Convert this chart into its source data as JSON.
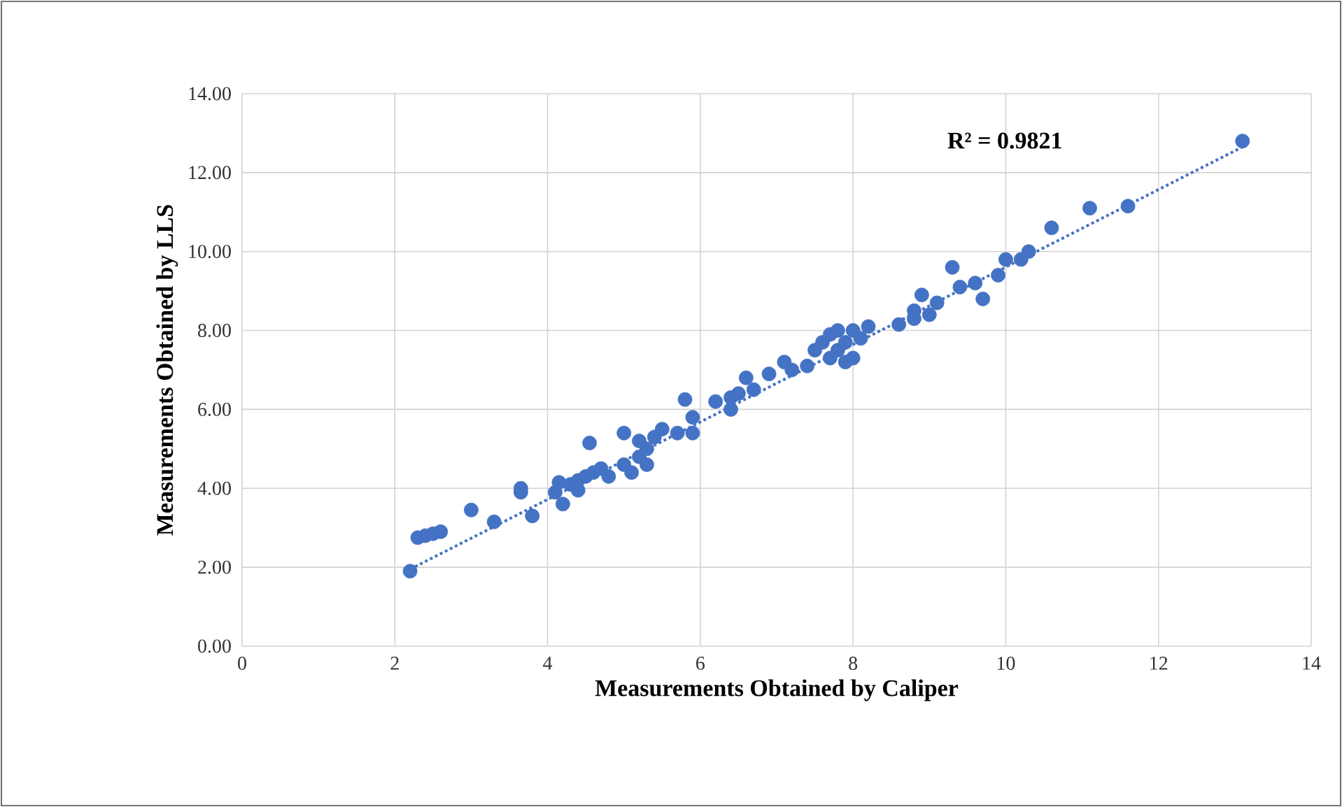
{
  "chart_data": {
    "type": "scatter",
    "xlabel": "Measurements Obtained by Caliper",
    "ylabel": "Measurements Obtained by  LLS",
    "annotations": [
      "R² = 0.9821"
    ],
    "xlim": [
      0,
      14
    ],
    "ylim": [
      0,
      14
    ],
    "xticks": [
      0,
      2,
      4,
      6,
      8,
      10,
      12,
      14
    ],
    "yticks": [
      {
        "value": 0,
        "label": "0.00"
      },
      {
        "value": 2,
        "label": "2.00"
      },
      {
        "value": 4,
        "label": "4.00"
      },
      {
        "value": 6,
        "label": "6.00"
      },
      {
        "value": 8,
        "label": "8.00"
      },
      {
        "value": 10,
        "label": "10.00"
      },
      {
        "value": 12,
        "label": "12.00"
      },
      {
        "value": 14,
        "label": "14.00"
      }
    ],
    "grid": true,
    "marker": "circle",
    "series": [
      {
        "color": "#4472c4",
        "x": [
          2.2,
          2.3,
          2.4,
          2.5,
          2.6,
          3.0,
          3.3,
          3.65,
          3.65,
          3.8,
          4.1,
          4.15,
          4.2,
          4.3,
          4.4,
          4.4,
          4.5,
          4.55,
          4.6,
          4.7,
          4.8,
          5.0,
          5.0,
          5.1,
          5.2,
          5.2,
          5.3,
          5.3,
          5.4,
          5.5,
          5.7,
          5.8,
          5.9,
          5.9,
          6.2,
          6.4,
          6.4,
          6.5,
          6.6,
          6.7,
          6.9,
          7.1,
          7.2,
          7.4,
          7.5,
          7.6,
          7.7,
          7.7,
          7.8,
          7.8,
          7.9,
          7.9,
          8.0,
          8.0,
          8.1,
          8.2,
          8.6,
          8.8,
          8.8,
          8.9,
          9.0,
          9.1,
          9.3,
          9.4,
          9.6,
          9.7,
          9.9,
          10.0,
          10.2,
          10.3,
          10.6,
          11.1,
          11.6,
          13.1
        ],
        "values": [
          1.9,
          2.75,
          2.8,
          2.85,
          2.9,
          3.45,
          3.15,
          3.9,
          4.0,
          3.3,
          3.9,
          4.15,
          3.6,
          4.1,
          3.95,
          4.2,
          4.3,
          5.15,
          4.4,
          4.5,
          4.3,
          5.4,
          4.6,
          4.4,
          4.8,
          5.2,
          4.6,
          5.0,
          5.3,
          5.5,
          5.4,
          6.25,
          5.4,
          5.8,
          6.2,
          6.0,
          6.3,
          6.4,
          6.8,
          6.5,
          6.9,
          7.2,
          7.0,
          7.1,
          7.5,
          7.7,
          7.3,
          7.9,
          7.5,
          8.0,
          7.2,
          7.7,
          7.3,
          8.0,
          7.8,
          8.1,
          8.15,
          8.3,
          8.5,
          8.9,
          8.4,
          8.7,
          9.6,
          9.1,
          9.2,
          8.8,
          9.4,
          9.8,
          9.8,
          10.0,
          10.6,
          11.1,
          11.15,
          12.8
        ]
      },
      {
        "type": "line",
        "marker": "none",
        "line_style": "dotted",
        "color": "#4472c4",
        "x": [
          2.2,
          13.1
        ],
        "values": [
          1.95,
          12.65
        ]
      }
    ]
  }
}
